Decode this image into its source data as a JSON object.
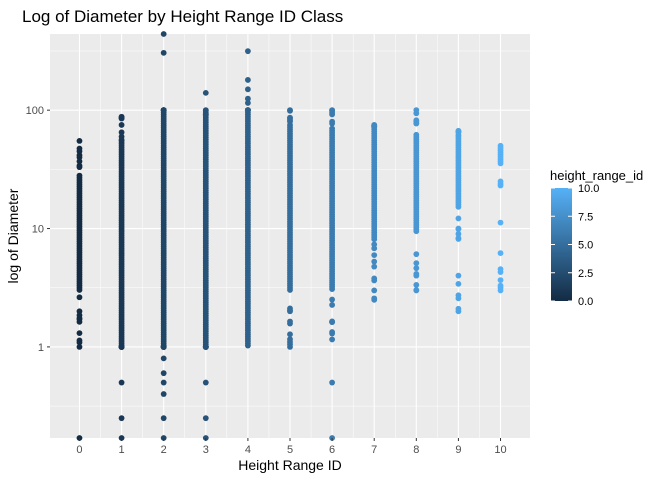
{
  "chart_data": {
    "type": "scatter",
    "title": "Log of Diameter by Height Range ID Class",
    "xlabel": "Height Range ID",
    "ylabel": "log of Diameter",
    "x_ticks": [
      "0",
      "1",
      "2",
      "3",
      "4",
      "5",
      "6",
      "7",
      "8",
      "9",
      "10"
    ],
    "y_scale": "log10",
    "y_ticks": [
      1,
      10,
      100
    ],
    "y_tick_labels": [
      "1",
      "10",
      "100"
    ],
    "ylim": [
      0.17,
      440
    ],
    "xlim": [
      -0.7,
      10.7
    ],
    "grid": true,
    "legend": {
      "title": "height_range_id",
      "placement": "right",
      "range": [
        0,
        10
      ],
      "ticks": [
        0.0,
        2.5,
        5.0,
        7.5,
        10.0
      ],
      "tick_labels": [
        "0.0",
        "2.5",
        "5.0",
        "7.5",
        "10.0"
      ],
      "color_low": "#132B43",
      "color_high": "#56B1F7"
    },
    "series": [
      {
        "x": 0,
        "min": 0.17,
        "max": 55,
        "dense_range": [
          3,
          28
        ],
        "outliers": [
          55,
          45,
          40,
          33,
          2,
          1,
          0.17
        ]
      },
      {
        "x": 1,
        "min": 0.17,
        "max": 88,
        "dense_range": [
          1,
          55
        ],
        "outliers": [
          88,
          85,
          75,
          65,
          0.5,
          0.25,
          0.17
        ]
      },
      {
        "x": 2,
        "min": 0.17,
        "max": 440,
        "dense_range": [
          1,
          100
        ],
        "outliers": [
          440,
          305,
          0.8,
          0.6,
          0.5,
          0.4,
          0.25,
          0.17
        ]
      },
      {
        "x": 3,
        "min": 0.17,
        "max": 140,
        "dense_range": [
          1,
          90
        ],
        "outliers": [
          140,
          100,
          0.5,
          0.25,
          0.17
        ]
      },
      {
        "x": 4,
        "min": 1,
        "max": 315,
        "dense_range": [
          1,
          100
        ],
        "outliers": [
          315,
          180,
          150,
          125,
          115
        ]
      },
      {
        "x": 5,
        "min": 1,
        "max": 100,
        "dense_range": [
          3,
          75
        ],
        "outliers": [
          100,
          80,
          2,
          1
        ]
      },
      {
        "x": 6,
        "min": 0.17,
        "max": 100,
        "dense_range": [
          3,
          70
        ],
        "outliers": [
          100,
          80,
          0.5,
          0.17
        ]
      },
      {
        "x": 7,
        "min": 2.5,
        "max": 75,
        "dense_range": [
          8,
          72
        ],
        "outliers": [
          75,
          3,
          2.5
        ]
      },
      {
        "x": 8,
        "min": 3,
        "max": 100,
        "dense_range": [
          10,
          62
        ],
        "outliers": [
          100,
          80,
          4,
          3
        ]
      },
      {
        "x": 9,
        "min": 2,
        "max": 67,
        "dense_range": [
          15,
          60
        ],
        "outliers": [
          67,
          10,
          9,
          4,
          2
        ]
      },
      {
        "x": 10,
        "min": 3,
        "max": 50,
        "dense_range": [
          35,
          50
        ],
        "outliers": [
          25,
          6.2,
          3
        ]
      }
    ]
  }
}
